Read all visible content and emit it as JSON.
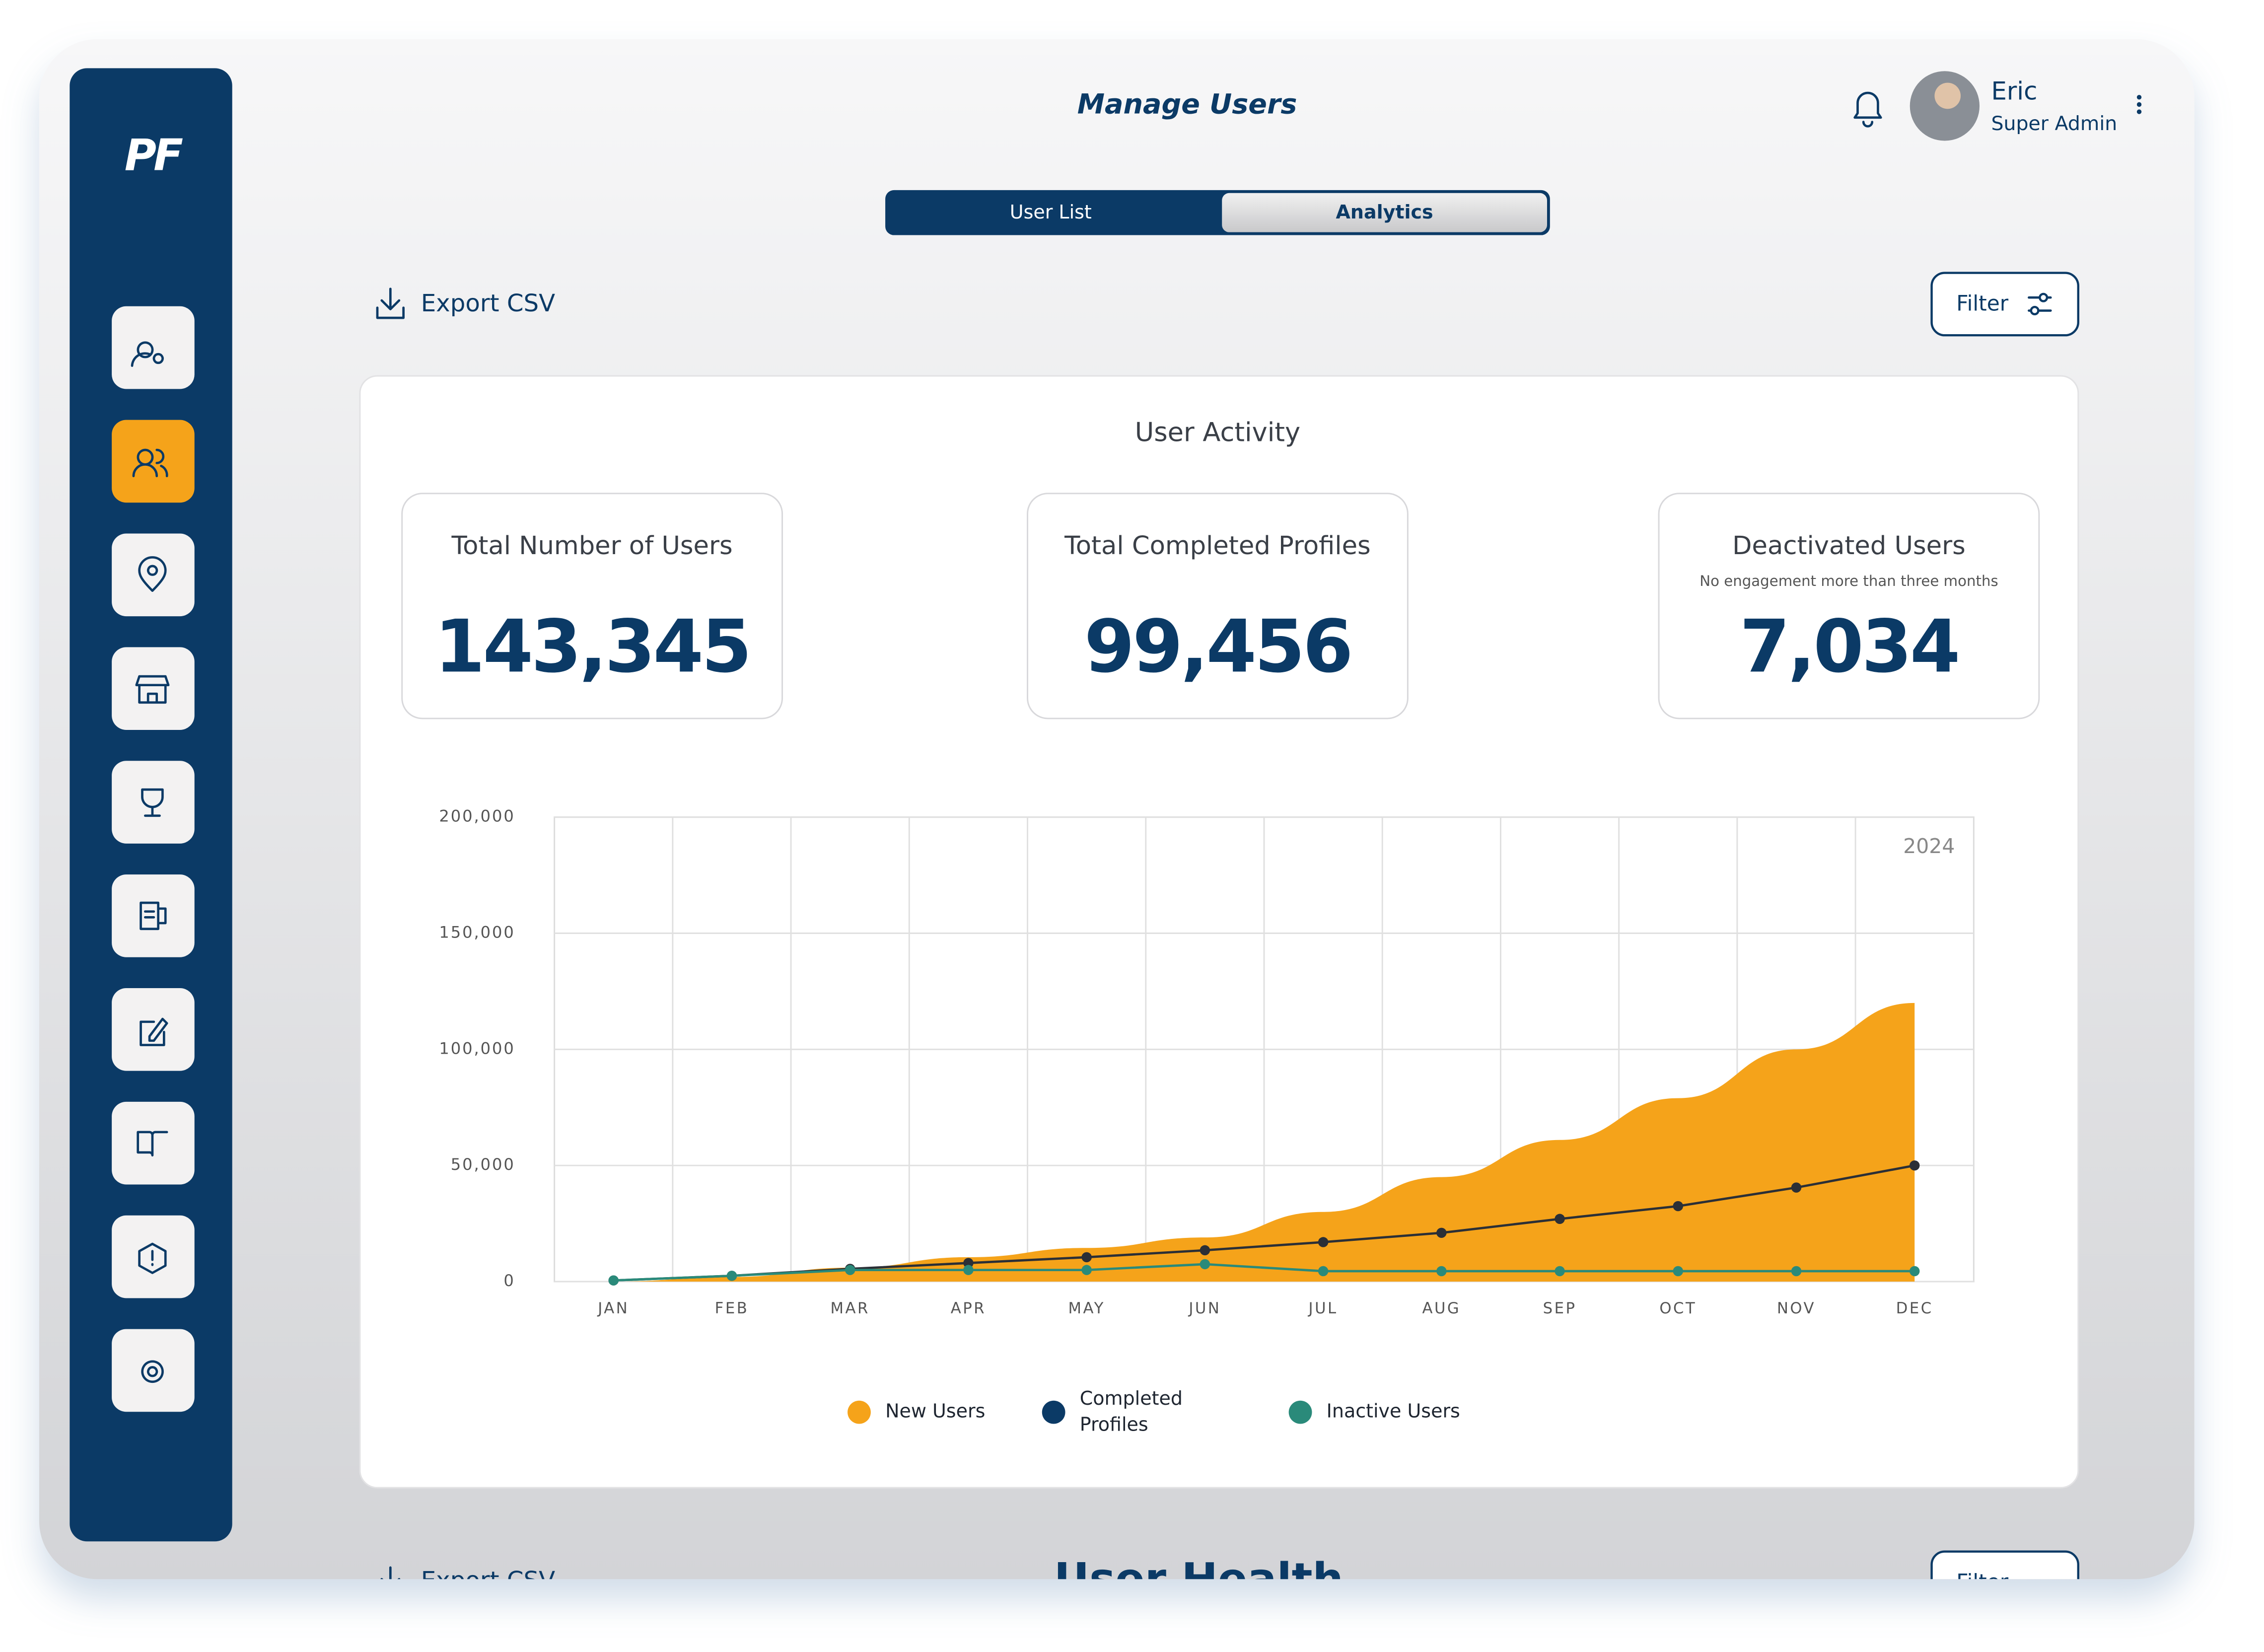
{
  "logo": "PF",
  "header": {
    "title": "Manage Users",
    "user_name": "Eric",
    "user_role": "Super Admin"
  },
  "tabs": [
    "User List",
    "Analytics"
  ],
  "toolbar": {
    "export": "Export CSV",
    "filter": "Filter"
  },
  "card_title": "User Activity",
  "stats": [
    {
      "label": "Total Number of Users",
      "value": "143,345"
    },
    {
      "label": "Total Completed Profiles",
      "value": "99,456"
    },
    {
      "label": "Deactivated Users",
      "note": "No engagement more than three months",
      "value": "7,034"
    }
  ],
  "chart_data": {
    "type": "area",
    "categories": [
      "JAN",
      "FEB",
      "MAR",
      "APR",
      "MAY",
      "JUN",
      "JUL",
      "AUG",
      "SEP",
      "OCT",
      "NOV",
      "DEC"
    ],
    "series": [
      {
        "name": "New Users",
        "type": "area",
        "color": "#f5a31a",
        "values": [
          0,
          2000,
          6000,
          10500,
          14500,
          19000,
          30000,
          45000,
          61000,
          79000,
          100000,
          120000
        ]
      },
      {
        "name": "Completed Profiles",
        "type": "line",
        "color": "#0b3a66",
        "values": [
          500,
          2500,
          5500,
          8000,
          10500,
          13500,
          17000,
          21000,
          27000,
          32500,
          40500,
          50000
        ]
      },
      {
        "name": "Inactive Users",
        "type": "line",
        "color": "#2a8a7a",
        "values": [
          500,
          2500,
          5000,
          5000,
          5000,
          7500,
          4500,
          4500,
          4500,
          4500,
          4500,
          4500
        ]
      }
    ],
    "ylim": [
      0,
      200000
    ],
    "yticks": [
      0,
      {
        "value": 50000,
        "label": "50,000"
      },
      {
        "value": 100000,
        "label": "100,000"
      },
      {
        "value": 150000,
        "label": "150,000"
      },
      {
        "value": 200000,
        "label": "200,000"
      }
    ],
    "grid": true,
    "annotation": "2024",
    "legend": "bottom"
  },
  "next_section": {
    "export": "Export CSV",
    "title": "User Health",
    "filter": "Filter"
  }
}
